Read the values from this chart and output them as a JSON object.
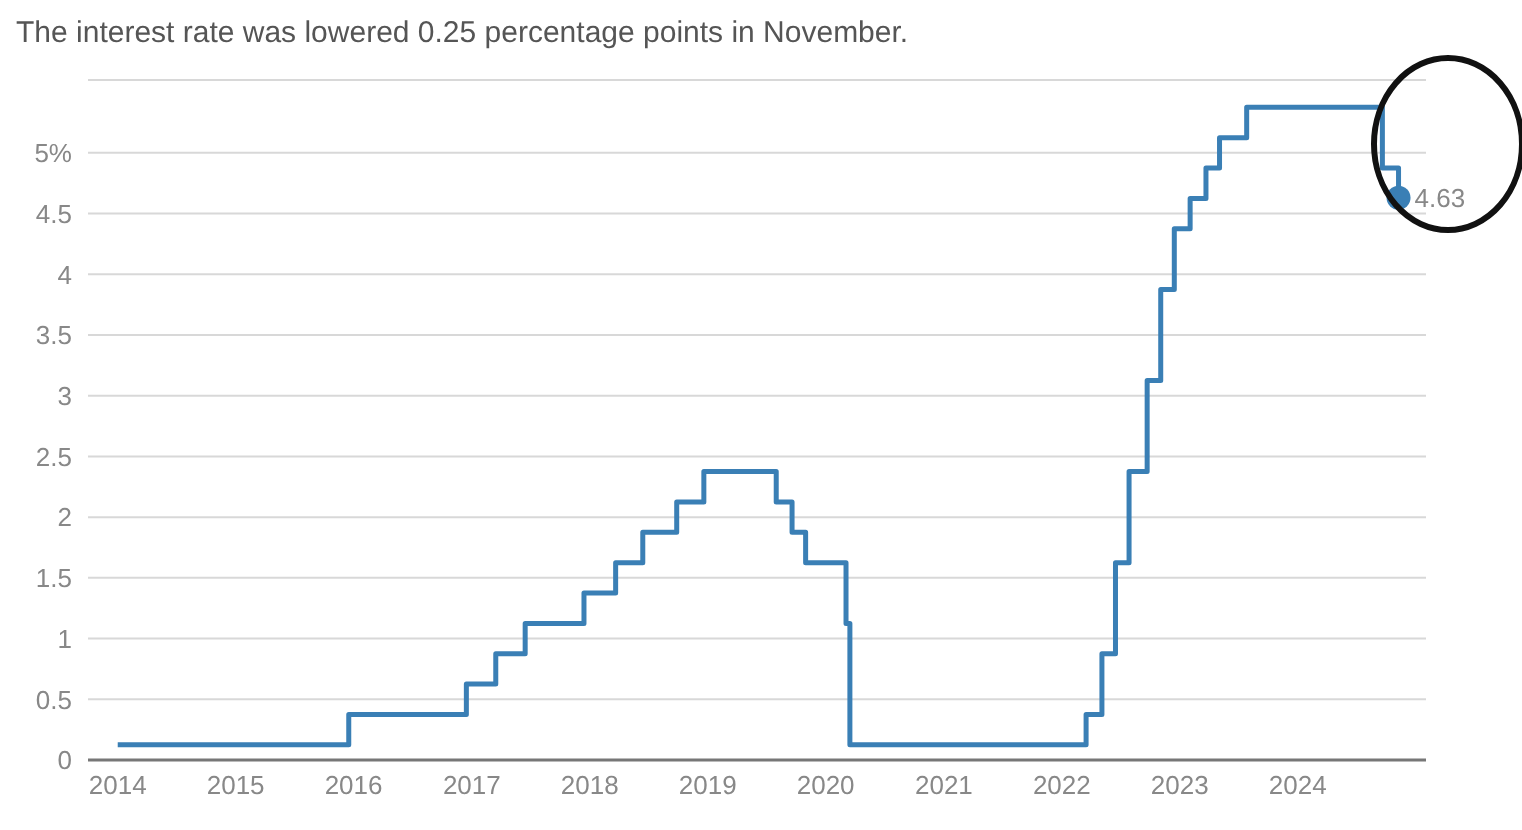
{
  "chart_data": {
    "type": "step",
    "title": "The interest rate was lowered 0.25 percentage points in November.",
    "x": [
      "2014-01-01",
      "2015-12-17",
      "2016-12-15",
      "2017-03-16",
      "2017-06-15",
      "2017-12-14",
      "2018-03-22",
      "2018-06-14",
      "2018-09-27",
      "2018-12-20",
      "2019-08-01",
      "2019-09-19",
      "2019-10-31",
      "2020-03-04",
      "2020-03-16",
      "2022-03-17",
      "2022-05-05",
      "2022-06-16",
      "2022-07-28",
      "2022-09-22",
      "2022-11-03",
      "2022-12-15",
      "2023-02-02",
      "2023-03-23",
      "2023-05-04",
      "2023-07-27",
      "2024-09-19",
      "2024-11-08"
    ],
    "series": [
      {
        "color": "#3a7fb5",
        "values": [
          0.125,
          0.375,
          0.625,
          0.875,
          1.125,
          1.375,
          1.625,
          1.875,
          2.125,
          2.375,
          2.125,
          1.875,
          1.625,
          1.125,
          0.125,
          0.375,
          0.875,
          1.625,
          2.375,
          3.125,
          3.875,
          4.375,
          4.625,
          4.875,
          5.125,
          5.375,
          4.875,
          4.63
        ],
        "value_labels": [
          null,
          null,
          null,
          null,
          null,
          null,
          null,
          null,
          null,
          null,
          null,
          null,
          null,
          null,
          null,
          null,
          null,
          null,
          null,
          null,
          null,
          null,
          null,
          null,
          null,
          null,
          null,
          "4.63"
        ]
      }
    ],
    "xlim": [
      "2013-10-01",
      "2025-02-01"
    ],
    "xticks": [
      "2014",
      "2015",
      "2016",
      "2017",
      "2018",
      "2019",
      "2020",
      "2021",
      "2022",
      "2023",
      "2024"
    ],
    "ylim": [
      0,
      5.6
    ],
    "yticks": [
      0,
      0.5,
      1,
      1.5,
      2,
      2.5,
      3,
      3.5,
      4,
      4.5,
      {
        "value": 5,
        "label": "5%"
      }
    ],
    "grid": "y",
    "legend": false,
    "marker": "none",
    "line_style": "solid"
  }
}
